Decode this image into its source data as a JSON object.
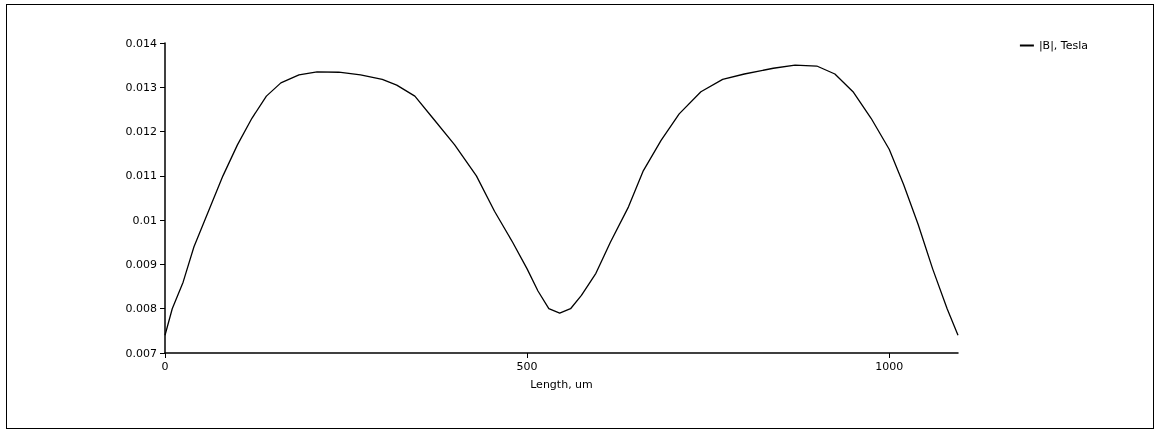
{
  "chart_data": {
    "type": "line",
    "xlabel": "Length, um",
    "x": [
      0,
      10,
      25,
      40,
      60,
      80,
      100,
      120,
      140,
      160,
      185,
      210,
      240,
      270,
      300,
      320,
      345,
      370,
      400,
      430,
      455,
      480,
      500,
      515,
      530,
      545,
      560,
      575,
      595,
      615,
      640,
      660,
      685,
      710,
      740,
      770,
      800,
      840,
      870,
      900,
      925,
      950,
      975,
      1000,
      1020,
      1040,
      1060,
      1080,
      1095
    ],
    "series": [
      {
        "name": "|B|, Tesla",
        "color": "#000000",
        "values": [
          0.0074,
          0.008,
          0.0086,
          0.0094,
          0.0102,
          0.011,
          0.0117,
          0.0123,
          0.0128,
          0.0131,
          0.01328,
          0.01335,
          0.01334,
          0.01328,
          0.01318,
          0.01305,
          0.0128,
          0.0123,
          0.0117,
          0.011,
          0.0102,
          0.0095,
          0.0089,
          0.0084,
          0.008,
          0.0079,
          0.008,
          0.0083,
          0.0088,
          0.0095,
          0.0103,
          0.0111,
          0.0118,
          0.0124,
          0.0129,
          0.01318,
          0.0133,
          0.01343,
          0.0135,
          0.01348,
          0.0133,
          0.0129,
          0.0123,
          0.0116,
          0.0108,
          0.0099,
          0.0089,
          0.008,
          0.0074
        ]
      }
    ],
    "xlim": [
      0,
      1095
    ],
    "xticks": [
      0,
      500,
      1000
    ],
    "ylim": [
      0.007,
      0.014
    ],
    "yticks": [
      0.007,
      0.008,
      0.009,
      0.01,
      0.011,
      0.012,
      0.013,
      0.014
    ],
    "grid": false,
    "legend": "top right",
    "marker": "none",
    "line_style": "solid"
  }
}
